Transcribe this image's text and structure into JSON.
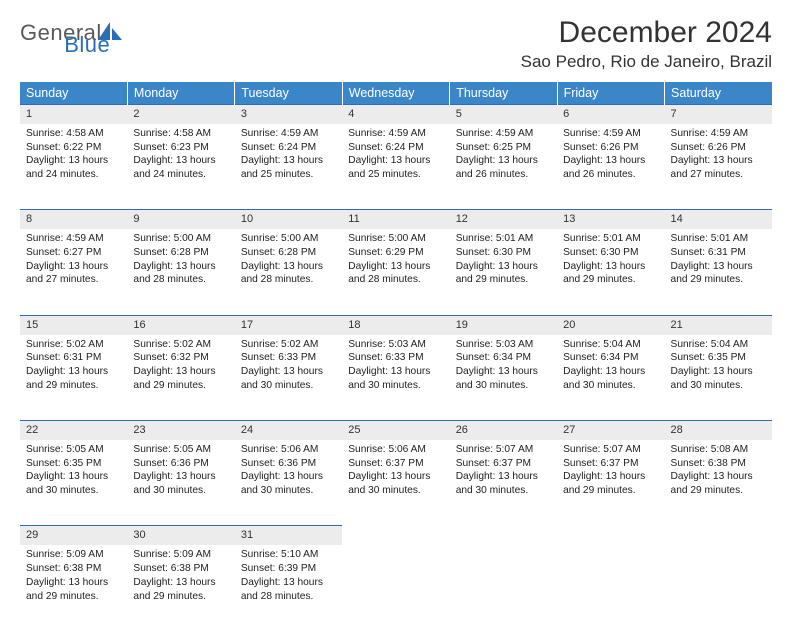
{
  "brand": {
    "part1": "General",
    "part2": "Blue",
    "logo_color": "#2a6db8"
  },
  "header": {
    "month_title": "December 2024",
    "location": "Sao Pedro, Rio de Janeiro, Brazil"
  },
  "styling": {
    "header_bg": "#3a86c8",
    "header_text": "#ffffff",
    "daynum_bg": "#ececec",
    "row_divider": "#2a6db8",
    "page_bg": "#ffffff",
    "body_text": "#222222",
    "font_family": "Arial",
    "month_title_fontsize": 30,
    "location_fontsize": 17,
    "weekday_fontsize": 12.5,
    "cell_fontsize": 10.2
  },
  "weekdays": [
    "Sunday",
    "Monday",
    "Tuesday",
    "Wednesday",
    "Thursday",
    "Friday",
    "Saturday"
  ],
  "weeks": [
    [
      {
        "n": "1",
        "sr": "4:58 AM",
        "ss": "6:22 PM",
        "dl": "13 hours and 24 minutes."
      },
      {
        "n": "2",
        "sr": "4:58 AM",
        "ss": "6:23 PM",
        "dl": "13 hours and 24 minutes."
      },
      {
        "n": "3",
        "sr": "4:59 AM",
        "ss": "6:24 PM",
        "dl": "13 hours and 25 minutes."
      },
      {
        "n": "4",
        "sr": "4:59 AM",
        "ss": "6:24 PM",
        "dl": "13 hours and 25 minutes."
      },
      {
        "n": "5",
        "sr": "4:59 AM",
        "ss": "6:25 PM",
        "dl": "13 hours and 26 minutes."
      },
      {
        "n": "6",
        "sr": "4:59 AM",
        "ss": "6:26 PM",
        "dl": "13 hours and 26 minutes."
      },
      {
        "n": "7",
        "sr": "4:59 AM",
        "ss": "6:26 PM",
        "dl": "13 hours and 27 minutes."
      }
    ],
    [
      {
        "n": "8",
        "sr": "4:59 AM",
        "ss": "6:27 PM",
        "dl": "13 hours and 27 minutes."
      },
      {
        "n": "9",
        "sr": "5:00 AM",
        "ss": "6:28 PM",
        "dl": "13 hours and 28 minutes."
      },
      {
        "n": "10",
        "sr": "5:00 AM",
        "ss": "6:28 PM",
        "dl": "13 hours and 28 minutes."
      },
      {
        "n": "11",
        "sr": "5:00 AM",
        "ss": "6:29 PM",
        "dl": "13 hours and 28 minutes."
      },
      {
        "n": "12",
        "sr": "5:01 AM",
        "ss": "6:30 PM",
        "dl": "13 hours and 29 minutes."
      },
      {
        "n": "13",
        "sr": "5:01 AM",
        "ss": "6:30 PM",
        "dl": "13 hours and 29 minutes."
      },
      {
        "n": "14",
        "sr": "5:01 AM",
        "ss": "6:31 PM",
        "dl": "13 hours and 29 minutes."
      }
    ],
    [
      {
        "n": "15",
        "sr": "5:02 AM",
        "ss": "6:31 PM",
        "dl": "13 hours and 29 minutes."
      },
      {
        "n": "16",
        "sr": "5:02 AM",
        "ss": "6:32 PM",
        "dl": "13 hours and 29 minutes."
      },
      {
        "n": "17",
        "sr": "5:02 AM",
        "ss": "6:33 PM",
        "dl": "13 hours and 30 minutes."
      },
      {
        "n": "18",
        "sr": "5:03 AM",
        "ss": "6:33 PM",
        "dl": "13 hours and 30 minutes."
      },
      {
        "n": "19",
        "sr": "5:03 AM",
        "ss": "6:34 PM",
        "dl": "13 hours and 30 minutes."
      },
      {
        "n": "20",
        "sr": "5:04 AM",
        "ss": "6:34 PM",
        "dl": "13 hours and 30 minutes."
      },
      {
        "n": "21",
        "sr": "5:04 AM",
        "ss": "6:35 PM",
        "dl": "13 hours and 30 minutes."
      }
    ],
    [
      {
        "n": "22",
        "sr": "5:05 AM",
        "ss": "6:35 PM",
        "dl": "13 hours and 30 minutes."
      },
      {
        "n": "23",
        "sr": "5:05 AM",
        "ss": "6:36 PM",
        "dl": "13 hours and 30 minutes."
      },
      {
        "n": "24",
        "sr": "5:06 AM",
        "ss": "6:36 PM",
        "dl": "13 hours and 30 minutes."
      },
      {
        "n": "25",
        "sr": "5:06 AM",
        "ss": "6:37 PM",
        "dl": "13 hours and 30 minutes."
      },
      {
        "n": "26",
        "sr": "5:07 AM",
        "ss": "6:37 PM",
        "dl": "13 hours and 30 minutes."
      },
      {
        "n": "27",
        "sr": "5:07 AM",
        "ss": "6:37 PM",
        "dl": "13 hours and 29 minutes."
      },
      {
        "n": "28",
        "sr": "5:08 AM",
        "ss": "6:38 PM",
        "dl": "13 hours and 29 minutes."
      }
    ],
    [
      {
        "n": "29",
        "sr": "5:09 AM",
        "ss": "6:38 PM",
        "dl": "13 hours and 29 minutes."
      },
      {
        "n": "30",
        "sr": "5:09 AM",
        "ss": "6:38 PM",
        "dl": "13 hours and 29 minutes."
      },
      {
        "n": "31",
        "sr": "5:10 AM",
        "ss": "6:39 PM",
        "dl": "13 hours and 28 minutes."
      },
      null,
      null,
      null,
      null
    ]
  ],
  "labels": {
    "sunrise": "Sunrise:",
    "sunset": "Sunset:",
    "daylight": "Daylight:"
  }
}
